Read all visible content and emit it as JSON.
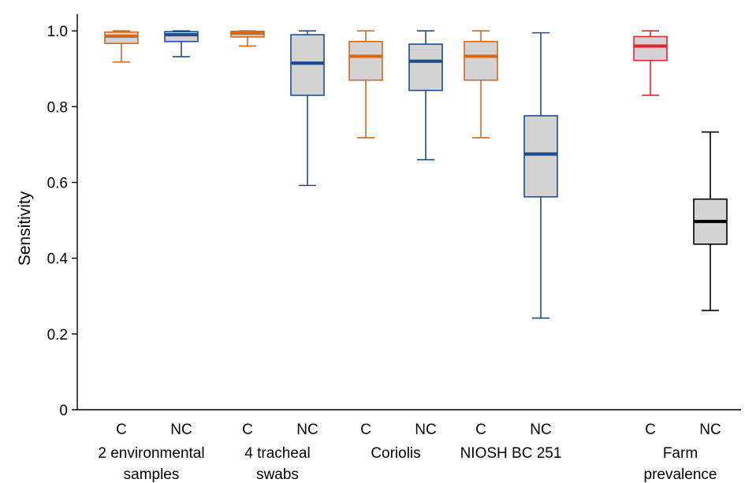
{
  "chart_data": {
    "type": "box",
    "title": "",
    "xlabel": "",
    "ylabel": "Sensitivity",
    "ylim": [
      0,
      1.04
    ],
    "yticks": [
      {
        "value": 0,
        "label": "0"
      },
      {
        "value": 0.2,
        "label": "0.2"
      },
      {
        "value": 0.4,
        "label": "0.4"
      },
      {
        "value": 0.6,
        "label": "0.6"
      },
      {
        "value": 0.8,
        "label": "0.8"
      },
      {
        "value": 1.0,
        "label": "1.0"
      }
    ],
    "grid": false,
    "legend": "none",
    "groups": [
      {
        "label_lines": [
          "2 environmental",
          "samples"
        ],
        "boxes": [
          {
            "label": "C",
            "color": "#d2691e",
            "median_color": "#d2691e",
            "whisker_low": 0.918,
            "q1": 0.967,
            "median": 0.986,
            "q3": 0.997,
            "whisker_high": 1.0
          },
          {
            "label": "NC",
            "color": "#1f4e8c",
            "median_color": "#1f4e8c",
            "whisker_low": 0.932,
            "q1": 0.972,
            "median": 0.99,
            "q3": 0.998,
            "whisker_high": 1.0
          }
        ]
      },
      {
        "label_lines": [
          "4 tracheal",
          "swabs"
        ],
        "boxes": [
          {
            "label": "C",
            "color": "#d2691e",
            "median_color": "#d2691e",
            "whisker_low": 0.96,
            "q1": 0.984,
            "median": 0.994,
            "q3": 0.999,
            "whisker_high": 1.0
          },
          {
            "label": "NC",
            "color": "#1f4e8c",
            "median_color": "#1f4e8c",
            "whisker_low": 0.592,
            "q1": 0.83,
            "median": 0.915,
            "q3": 0.99,
            "whisker_high": 1.0
          }
        ]
      },
      {
        "label_lines": [
          "Coriolis"
        ],
        "boxes": [
          {
            "label": "C",
            "color": "#d2691e",
            "median_color": "#d2691e",
            "whisker_low": 0.718,
            "q1": 0.87,
            "median": 0.933,
            "q3": 0.972,
            "whisker_high": 1.0
          },
          {
            "label": "NC",
            "color": "#1f4e8c",
            "median_color": "#1f4e8c",
            "whisker_low": 0.66,
            "q1": 0.843,
            "median": 0.92,
            "q3": 0.965,
            "whisker_high": 1.0
          }
        ]
      },
      {
        "label_lines": [
          "NIOSH BC 251"
        ],
        "boxes": [
          {
            "label": "C",
            "color": "#d2691e",
            "median_color": "#d2691e",
            "whisker_low": 0.718,
            "q1": 0.87,
            "median": 0.933,
            "q3": 0.972,
            "whisker_high": 1.0
          },
          {
            "label": "NC",
            "color": "#1f4e8c",
            "median_color": "#1f4e8c",
            "whisker_low": 0.242,
            "q1": 0.562,
            "median": 0.675,
            "q3": 0.776,
            "whisker_high": 0.995
          }
        ]
      },
      {
        "label_lines": [
          "Farm",
          "prevalence"
        ],
        "boxes": [
          {
            "label": "C",
            "color": "#e0252f",
            "median_color": "#e0252f",
            "whisker_low": 0.83,
            "q1": 0.922,
            "median": 0.96,
            "q3": 0.985,
            "whisker_high": 1.0
          },
          {
            "label": "NC",
            "color": "#000000",
            "median_color": "#000000",
            "whisker_low": 0.262,
            "q1": 0.437,
            "median": 0.497,
            "q3": 0.556,
            "whisker_high": 0.733
          }
        ]
      }
    ]
  }
}
